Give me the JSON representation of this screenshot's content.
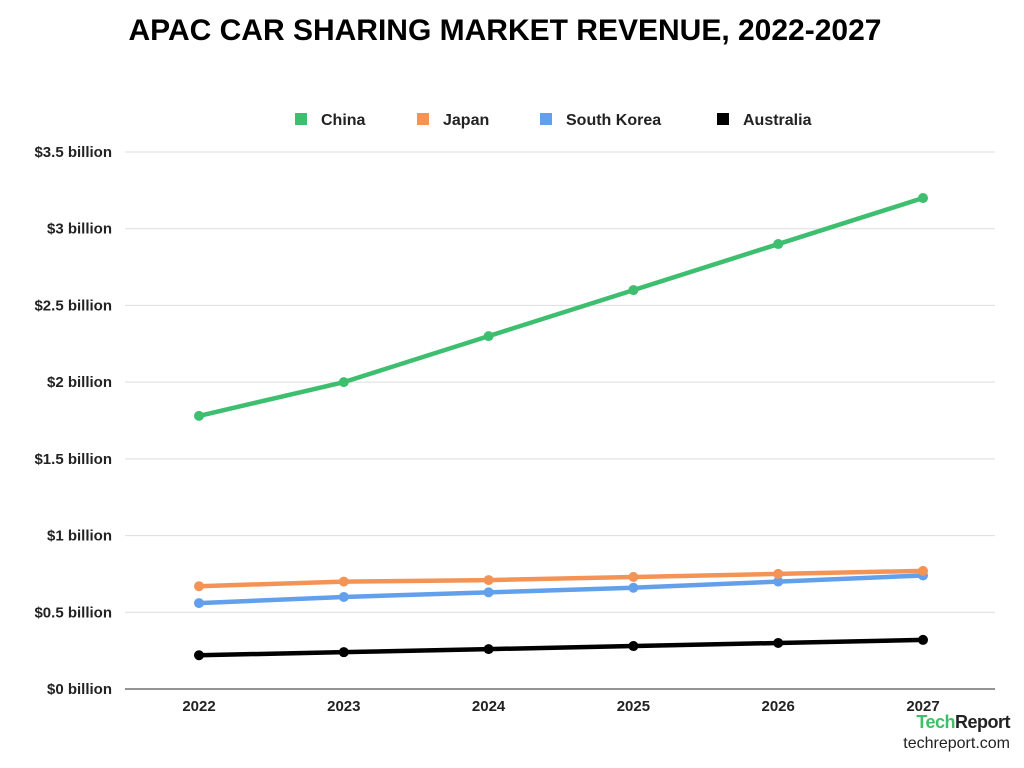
{
  "chart_data": {
    "type": "line",
    "title": "APAC CAR SHARING MARKET REVENUE, 2022-2027",
    "categories": [
      "2022",
      "2023",
      "2024",
      "2025",
      "2026",
      "2027"
    ],
    "series": [
      {
        "name": "China",
        "color": "#3dbf6f",
        "values": [
          1.78,
          2.0,
          2.3,
          2.6,
          2.9,
          3.2
        ]
      },
      {
        "name": "Japan",
        "color": "#f39456",
        "values": [
          0.67,
          0.7,
          0.71,
          0.73,
          0.75,
          0.77
        ]
      },
      {
        "name": "South Korea",
        "color": "#62a0ec",
        "values": [
          0.56,
          0.6,
          0.63,
          0.66,
          0.7,
          0.74
        ]
      },
      {
        "name": "Australia",
        "color": "#000000",
        "values": [
          0.22,
          0.24,
          0.26,
          0.28,
          0.3,
          0.32
        ]
      }
    ],
    "yticks": [
      "$0 billion",
      "$0.5 billion",
      "$1 billion",
      "$1.5 billion",
      "$2 billion",
      "$2.5 billion",
      "$3 billion",
      "$3.5 billion"
    ],
    "ylim": [
      0,
      3.5
    ],
    "yunit": "billion USD",
    "grid": true,
    "legend": "top"
  },
  "brand": {
    "tech": "Tech",
    "report": "Report",
    "url": "techreport.com"
  }
}
